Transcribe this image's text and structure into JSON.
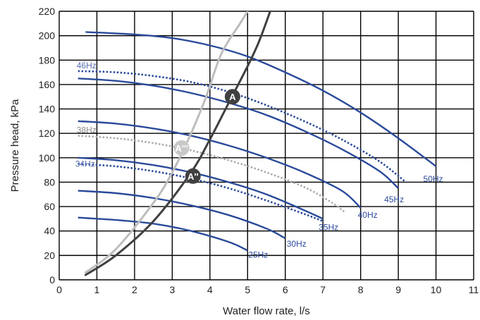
{
  "chart_data": {
    "type": "line",
    "xlabel": "Water flow rate, l/s",
    "ylabel": "Pressure head, kPa",
    "xlim": [
      0,
      11
    ],
    "ylim": [
      0,
      220
    ],
    "xticks": [
      "0",
      "1",
      "2",
      "3",
      "4",
      "5",
      "6",
      "7",
      "8",
      "9",
      "10",
      "11"
    ],
    "yticks": [
      "0",
      "20",
      "40",
      "60",
      "80",
      "100",
      "120",
      "140",
      "160",
      "180",
      "200",
      "220"
    ],
    "grid": true,
    "colors": {
      "blue": "#2a4a9a",
      "dark": "#404040",
      "light": "#bdbdbd",
      "dotted_gray": "#aaaaaa",
      "point_light": "#c8c8c8"
    },
    "series": [
      {
        "name": "50Hz",
        "style": "solid",
        "x": [
          0.7,
          2,
          3,
          4,
          5,
          6,
          7,
          8,
          9,
          10
        ],
        "y": [
          203,
          201,
          198,
          192,
          183,
          170,
          155,
          137,
          116,
          93
        ]
      },
      {
        "name": "46Hz",
        "style": "dotted",
        "x": [
          0.5,
          1.5,
          2.5,
          3.5,
          4.5,
          5.5,
          6.5,
          7.5,
          8.5,
          9.2
        ],
        "y": [
          171,
          170,
          167,
          162,
          154,
          143,
          130,
          115,
          97,
          80
        ]
      },
      {
        "name": "45Hz",
        "style": "solid",
        "x": [
          0.5,
          1.5,
          2.5,
          3.5,
          4.5,
          5.5,
          6.5,
          7.5,
          8.5,
          9
        ],
        "y": [
          165,
          163,
          159,
          153,
          145,
          135,
          122,
          107,
          89,
          75
        ]
      },
      {
        "name": "40Hz",
        "style": "solid",
        "x": [
          0.5,
          1.5,
          2.5,
          3.5,
          4.5,
          5.5,
          6.5,
          7.5,
          8
        ],
        "y": [
          130,
          128,
          124,
          118,
          110,
          100,
          88,
          73,
          59
        ]
      },
      {
        "name": "38Hz",
        "style": "dotted",
        "x": [
          0.5,
          1.5,
          2.5,
          3.5,
          4.5,
          5.5,
          6.5,
          7.2,
          7.6
        ],
        "y": [
          118,
          116,
          112,
          106,
          98,
          88,
          76,
          64,
          55
        ]
      },
      {
        "name": "35Hz",
        "style": "solid",
        "x": [
          0.5,
          1.5,
          2.5,
          3.5,
          4.5,
          5.5,
          6.5,
          7
        ],
        "y": [
          100,
          98,
          94,
          88,
          80,
          70,
          57,
          50
        ]
      },
      {
        "name": "34Hz",
        "style": "dotted",
        "x": [
          0.5,
          1.5,
          2.5,
          3.5,
          4.5,
          5.5,
          6.5,
          7
        ],
        "y": [
          95,
          93,
          89,
          83,
          75,
          65,
          54,
          48
        ]
      },
      {
        "name": "30Hz",
        "style": "solid",
        "x": [
          0.5,
          1.5,
          2.5,
          3.5,
          4.5,
          5.5,
          6
        ],
        "y": [
          73,
          71,
          67,
          61,
          53,
          42,
          34
        ]
      },
      {
        "name": "25Hz",
        "style": "solid",
        "x": [
          0.5,
          1.5,
          2.5,
          3.5,
          4.5,
          5
        ],
        "y": [
          51,
          49,
          46,
          40,
          31,
          24
        ]
      }
    ],
    "system_curves": [
      {
        "label": "",
        "color": "dark",
        "x": [
          0.7,
          1.5,
          2.5,
          3.5,
          4.0,
          4.5,
          5.0,
          5.3,
          5.6
        ],
        "y": [
          4,
          20,
          48,
          88,
          115,
          145,
          175,
          195,
          220
        ]
      },
      {
        "label": "",
        "color": "light",
        "x": [
          0.7,
          1.5,
          2.5,
          3.0,
          3.5,
          3.9,
          4.3,
          4.8,
          5.0
        ],
        "y": [
          6,
          25,
          63,
          88,
          120,
          150,
          185,
          210,
          220
        ]
      }
    ],
    "points": [
      {
        "label": "A",
        "x": 4.6,
        "y": 150,
        "fill": "dark",
        "text_color": "#ffffff"
      },
      {
        "label": "A''",
        "x": 3.55,
        "y": 85,
        "fill": "dark",
        "text_color": "#ffffff"
      },
      {
        "label": "A'''",
        "x": 3.25,
        "y": 108,
        "fill": "point_light",
        "text_color": "#ffffff"
      }
    ]
  }
}
